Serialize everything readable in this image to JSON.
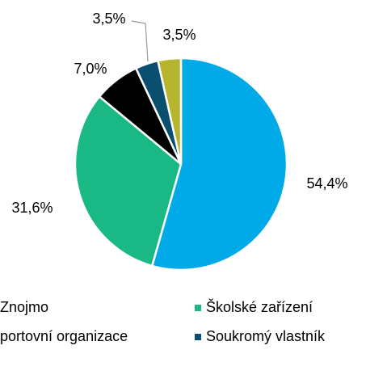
{
  "chart_data": {
    "type": "pie",
    "categories": [
      "Znojmo",
      "Školské zařízení",
      "portovní organizace",
      "Soukromý vlastník",
      null
    ],
    "values": [
      54.4,
      31.6,
      7.0,
      3.5,
      3.5
    ],
    "value_labels": [
      "54,4%",
      "31,6%",
      "7,0%",
      "3,5%",
      "3,5%"
    ],
    "colors": [
      "#00a9e8",
      "#1ab884",
      "#000000",
      "#0a4f6e",
      "#b5b52e"
    ],
    "legend": "bottom"
  }
}
